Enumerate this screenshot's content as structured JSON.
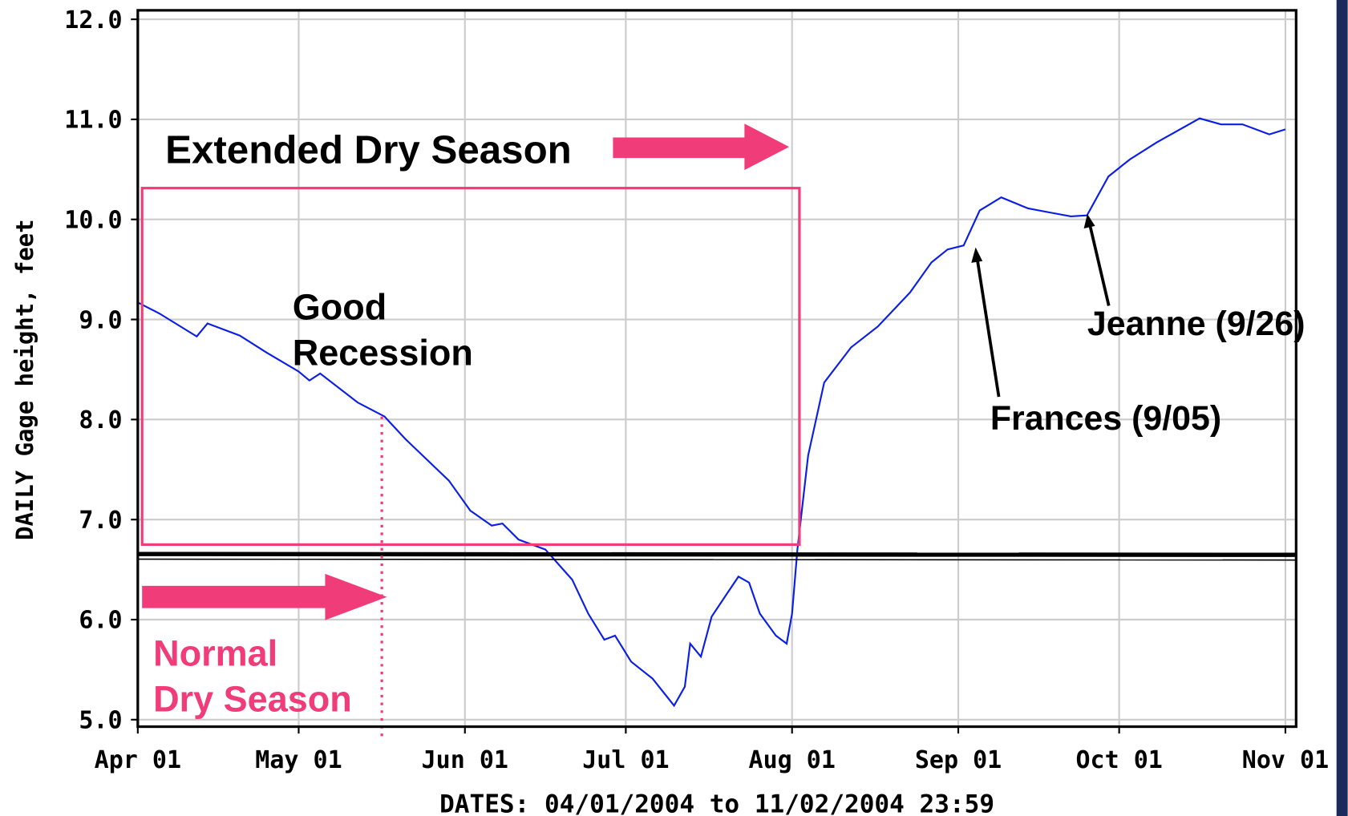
{
  "chart_data": {
    "type": "line",
    "xlabel": "DATES: 04/01/2004 to 11/02/2004 23:59",
    "ylabel": "DAILY Gage height, feet",
    "xlim": [
      "2004-04-01",
      "2004-11-03"
    ],
    "ylim": [
      4.93,
      12.09
    ],
    "xticks": [
      {
        "value": "2004-04-01",
        "label": "Apr 01"
      },
      {
        "value": "2004-05-01",
        "label": "May 01"
      },
      {
        "value": "2004-06-01",
        "label": "Jun 01"
      },
      {
        "value": "2004-07-01",
        "label": "Jul 01"
      },
      {
        "value": "2004-08-01",
        "label": "Aug 01"
      },
      {
        "value": "2004-09-01",
        "label": "Sep 01"
      },
      {
        "value": "2004-10-01",
        "label": "Oct 01"
      },
      {
        "value": "2004-11-01",
        "label": "Nov 01"
      }
    ],
    "yticks": [
      {
        "value": 5,
        "label": "5.0"
      },
      {
        "value": 6,
        "label": "6.0"
      },
      {
        "value": 7,
        "label": "7.0"
      },
      {
        "value": 8,
        "label": "8.0"
      },
      {
        "value": 9,
        "label": "9.0"
      },
      {
        "value": 10,
        "label": "10.0"
      },
      {
        "value": 11,
        "label": "11.0"
      },
      {
        "value": 12,
        "label": "12.0"
      }
    ],
    "grid": true,
    "annotations": {
      "extended": "Extended Dry Season",
      "recession": [
        "Good",
        "Recession"
      ],
      "normal": [
        "Normal",
        "Dry Season"
      ],
      "frances": "Frances (9/05)",
      "jeanne": "Jeanne (9/26)"
    },
    "series": [
      {
        "name": "DAILY Gage height",
        "color": "#0a1ee6",
        "x": [
          "2004-04-01",
          "2004-04-05",
          "2004-04-12",
          "2004-04-14",
          "2004-04-20",
          "2004-04-25",
          "2004-05-01",
          "2004-05-03",
          "2004-05-05",
          "2004-05-12",
          "2004-05-17",
          "2004-05-21",
          "2004-05-29",
          "2004-06-02",
          "2004-06-06",
          "2004-06-08",
          "2004-06-11",
          "2004-06-16",
          "2004-06-21",
          "2004-06-24",
          "2004-06-27",
          "2004-06-29",
          "2004-07-02",
          "2004-07-06",
          "2004-07-10",
          "2004-07-12",
          "2004-07-13",
          "2004-07-15",
          "2004-07-17",
          "2004-07-20",
          "2004-07-22",
          "2004-07-24",
          "2004-07-26",
          "2004-07-29",
          "2004-07-31",
          "2004-08-01",
          "2004-08-02",
          "2004-08-04",
          "2004-08-07",
          "2004-08-12",
          "2004-08-17",
          "2004-08-23",
          "2004-08-27",
          "2004-08-30",
          "2004-09-02",
          "2004-09-05",
          "2004-09-09",
          "2004-09-14",
          "2004-09-18",
          "2004-09-22",
          "2004-09-25",
          "2004-09-29",
          "2004-10-03",
          "2004-10-08",
          "2004-10-16",
          "2004-10-20",
          "2004-10-24",
          "2004-10-29",
          "2004-11-01"
        ],
        "values": [
          9.17,
          9.06,
          8.83,
          8.96,
          8.84,
          8.67,
          8.48,
          8.39,
          8.46,
          8.17,
          8.03,
          7.8,
          7.39,
          7.09,
          6.94,
          6.96,
          6.8,
          6.7,
          6.4,
          6.06,
          5.8,
          5.84,
          5.58,
          5.41,
          5.14,
          5.33,
          5.76,
          5.63,
          6.03,
          6.27,
          6.43,
          6.37,
          6.06,
          5.84,
          5.76,
          6.06,
          6.7,
          7.64,
          8.37,
          8.72,
          8.93,
          9.27,
          9.57,
          9.7,
          9.74,
          10.09,
          10.22,
          10.11,
          10.07,
          10.03,
          10.04,
          10.43,
          10.6,
          10.77,
          11.01,
          10.95,
          10.95,
          10.85,
          10.9
        ]
      }
    ]
  }
}
